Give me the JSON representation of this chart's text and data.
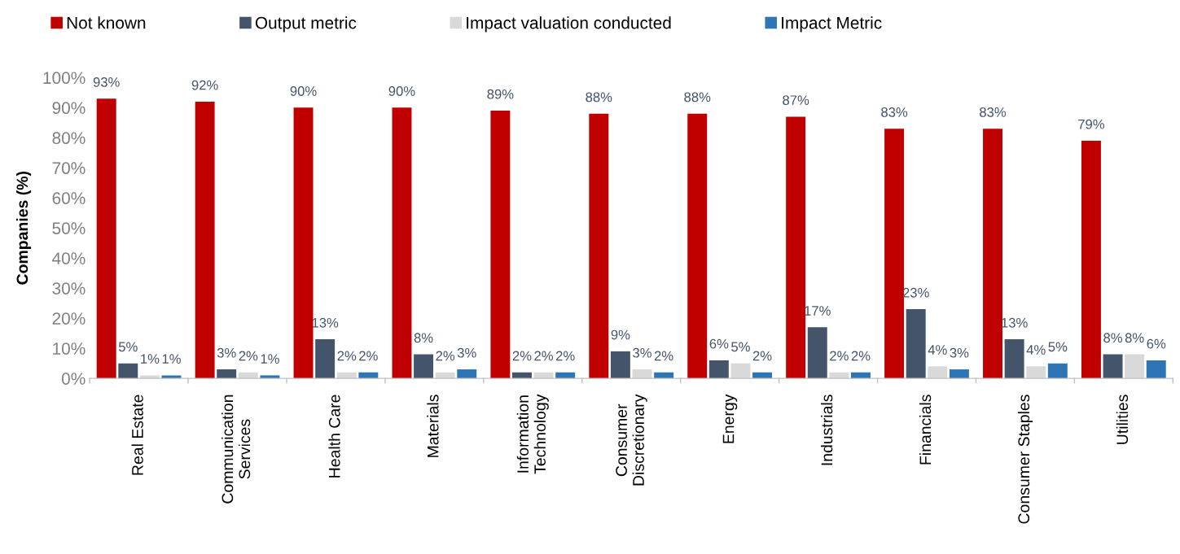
{
  "chart_data": {
    "type": "bar",
    "ylabel": "Companies (%)",
    "categories": [
      "Real Estate",
      "Communication\nServices",
      "Health Care",
      "Materials",
      "Information\nTechnology",
      "Consumer\nDiscretionary",
      "Energy",
      "Industrials",
      "Financials",
      "Consumer Staples",
      "Utilities"
    ],
    "series": [
      {
        "name": "Not known",
        "color": "#c00000",
        "values": [
          93,
          92,
          90,
          90,
          89,
          88,
          88,
          87,
          83,
          83,
          79
        ],
        "value_labels": [
          "93%",
          "92%",
          "90%",
          "90%",
          "89%",
          "88%",
          "88%",
          "87%",
          "83%",
          "83%",
          "79%"
        ]
      },
      {
        "name": "Output metric",
        "color": "#44546a",
        "values": [
          5,
          3,
          13,
          8,
          2,
          9,
          6,
          17,
          23,
          13,
          8
        ],
        "value_labels": [
          "5%",
          "3%",
          "13%",
          "8%",
          "2%",
          "9%",
          "6%",
          "17%",
          "23%",
          "13%",
          "8%"
        ]
      },
      {
        "name": "Impact valuation conducted",
        "color": "#d9d9d9",
        "values": [
          1,
          2,
          2,
          2,
          2,
          3,
          5,
          2,
          4,
          4,
          8
        ],
        "value_labels": [
          "1%",
          "2%",
          "2%",
          "2%",
          "2%",
          "3%",
          "5%",
          "2%",
          "4%",
          "4%",
          "8%"
        ]
      },
      {
        "name": "Impact Metric",
        "color": "#2e75b6",
        "values": [
          1,
          1,
          2,
          3,
          2,
          2,
          2,
          2,
          3,
          5,
          6
        ],
        "value_labels": [
          "1%",
          "1%",
          "2%",
          "3%",
          "2%",
          "2%",
          "2%",
          "2%",
          "3%",
          "5%",
          "6%"
        ]
      }
    ],
    "ylim": [
      0,
      100
    ],
    "yticks": [
      {
        "value": 0,
        "label": "0%"
      },
      {
        "value": 10,
        "label": "10%"
      },
      {
        "value": 20,
        "label": "20%"
      },
      {
        "value": 30,
        "label": "30%"
      },
      {
        "value": 40,
        "label": "40%"
      },
      {
        "value": 50,
        "label": "50%"
      },
      {
        "value": 60,
        "label": "60%"
      },
      {
        "value": 70,
        "label": "70%"
      },
      {
        "value": 80,
        "label": "80%"
      },
      {
        "value": 90,
        "label": "90%"
      },
      {
        "value": 100,
        "label": "100%"
      }
    ],
    "grid": false,
    "legend": "top"
  }
}
